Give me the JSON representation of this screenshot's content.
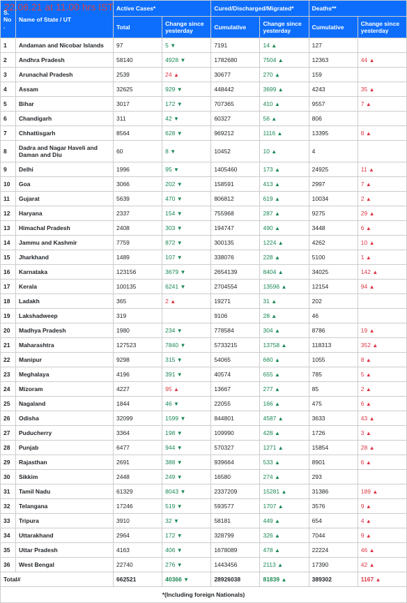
{
  "stamp": "22.06.21 at 11.00 hrs IST",
  "headers": {
    "sn": "S. No.",
    "name": "Name of State / UT",
    "active": "Active Cases*",
    "cured": "Cured/Discharged/Migrated*",
    "deaths": "Deaths**",
    "total": "Total",
    "change": "Change since yesterday",
    "cum": "Cumulative"
  },
  "footer": "*(Including foreign Nationals)",
  "total_label": "Total#",
  "totals": {
    "active_total": "662521",
    "active_ch": {
      "v": "40366",
      "d": "down"
    },
    "cured_cum": "28926038",
    "cured_ch": {
      "v": "81839",
      "d": "up-g"
    },
    "death_cum": "389302",
    "death_ch": {
      "v": "1167",
      "d": "up-r"
    }
  },
  "rows": [
    {
      "n": "1",
      "name": "Andaman and Nicobar Islands",
      "at": "97",
      "ac": {
        "v": "5",
        "d": "down"
      },
      "cc": "7191",
      "cch": {
        "v": "14",
        "d": "up-g"
      },
      "dc": "127",
      "dch": null
    },
    {
      "n": "2",
      "name": "Andhra Pradesh",
      "at": "58140",
      "ac": {
        "v": "4928",
        "d": "down"
      },
      "cc": "1782680",
      "cch": {
        "v": "7504",
        "d": "up-g"
      },
      "dc": "12363",
      "dch": {
        "v": "44",
        "d": "up-r"
      }
    },
    {
      "n": "3",
      "name": "Arunachal Pradesh",
      "at": "2539",
      "ac": {
        "v": "24",
        "d": "up-r"
      },
      "cc": "30677",
      "cch": {
        "v": "270",
        "d": "up-g"
      },
      "dc": "159",
      "dch": null
    },
    {
      "n": "4",
      "name": "Assam",
      "at": "32625",
      "ac": {
        "v": "929",
        "d": "down"
      },
      "cc": "448442",
      "cch": {
        "v": "3699",
        "d": "up-g"
      },
      "dc": "4243",
      "dch": {
        "v": "35",
        "d": "up-r"
      }
    },
    {
      "n": "5",
      "name": "Bihar",
      "at": "3017",
      "ac": {
        "v": "172",
        "d": "down"
      },
      "cc": "707365",
      "cch": {
        "v": "410",
        "d": "up-g"
      },
      "dc": "9557",
      "dch": {
        "v": "7",
        "d": "up-r"
      }
    },
    {
      "n": "6",
      "name": "Chandigarh",
      "at": "311",
      "ac": {
        "v": "42",
        "d": "down"
      },
      "cc": "60327",
      "cch": {
        "v": "56",
        "d": "up-g"
      },
      "dc": "806",
      "dch": null
    },
    {
      "n": "7",
      "name": "Chhattisgarh",
      "at": "8564",
      "ac": {
        "v": "628",
        "d": "down"
      },
      "cc": "969212",
      "cch": {
        "v": "1116",
        "d": "up-g"
      },
      "dc": "13395",
      "dch": {
        "v": "8",
        "d": "up-r"
      }
    },
    {
      "n": "8",
      "name": "Dadra and Nagar Haveli and Daman and Diu",
      "at": "60",
      "ac": {
        "v": "8",
        "d": "down"
      },
      "cc": "10452",
      "cch": {
        "v": "10",
        "d": "up-g"
      },
      "dc": "4",
      "dch": null
    },
    {
      "n": "9",
      "name": "Delhi",
      "at": "1996",
      "ac": {
        "v": "95",
        "d": "down"
      },
      "cc": "1405460",
      "cch": {
        "v": "173",
        "d": "up-g"
      },
      "dc": "24925",
      "dch": {
        "v": "11",
        "d": "up-r"
      }
    },
    {
      "n": "10",
      "name": "Goa",
      "at": "3066",
      "ac": {
        "v": "202",
        "d": "down"
      },
      "cc": "158591",
      "cch": {
        "v": "413",
        "d": "up-g"
      },
      "dc": "2997",
      "dch": {
        "v": "7",
        "d": "up-r"
      }
    },
    {
      "n": "11",
      "name": "Gujarat",
      "at": "5639",
      "ac": {
        "v": "470",
        "d": "down"
      },
      "cc": "806812",
      "cch": {
        "v": "619",
        "d": "up-g"
      },
      "dc": "10034",
      "dch": {
        "v": "2",
        "d": "up-r"
      }
    },
    {
      "n": "12",
      "name": "Haryana",
      "at": "2337",
      "ac": {
        "v": "154",
        "d": "down"
      },
      "cc": "755968",
      "cch": {
        "v": "287",
        "d": "up-g"
      },
      "dc": "9275",
      "dch": {
        "v": "29",
        "d": "up-r"
      }
    },
    {
      "n": "13",
      "name": "Himachal Pradesh",
      "at": "2408",
      "ac": {
        "v": "303",
        "d": "down"
      },
      "cc": "194747",
      "cch": {
        "v": "490",
        "d": "up-g"
      },
      "dc": "3448",
      "dch": {
        "v": "6",
        "d": "up-r"
      }
    },
    {
      "n": "14",
      "name": "Jammu and Kashmir",
      "at": "7759",
      "ac": {
        "v": "872",
        "d": "down"
      },
      "cc": "300135",
      "cch": {
        "v": "1224",
        "d": "up-g"
      },
      "dc": "4262",
      "dch": {
        "v": "10",
        "d": "up-r"
      }
    },
    {
      "n": "15",
      "name": "Jharkhand",
      "at": "1489",
      "ac": {
        "v": "107",
        "d": "down"
      },
      "cc": "338076",
      "cch": {
        "v": "228",
        "d": "up-g"
      },
      "dc": "5100",
      "dch": {
        "v": "1",
        "d": "up-r"
      }
    },
    {
      "n": "16",
      "name": "Karnataka",
      "at": "123156",
      "ac": {
        "v": "3679",
        "d": "down"
      },
      "cc": "2654139",
      "cch": {
        "v": "8404",
        "d": "up-g"
      },
      "dc": "34025",
      "dch": {
        "v": "142",
        "d": "up-r"
      }
    },
    {
      "n": "17",
      "name": "Kerala",
      "at": "100135",
      "ac": {
        "v": "6241",
        "d": "down"
      },
      "cc": "2704554",
      "cch": {
        "v": "13596",
        "d": "up-g"
      },
      "dc": "12154",
      "dch": {
        "v": "94",
        "d": "up-r"
      }
    },
    {
      "n": "18",
      "name": "Ladakh",
      "at": "365",
      "ac": {
        "v": "2",
        "d": "up-r"
      },
      "cc": "19271",
      "cch": {
        "v": "31",
        "d": "up-g"
      },
      "dc": "202",
      "dch": null
    },
    {
      "n": "19",
      "name": "Lakshadweep",
      "at": "319",
      "ac": null,
      "cc": "9106",
      "cch": {
        "v": "28",
        "d": "up-g"
      },
      "dc": "46",
      "dch": null
    },
    {
      "n": "20",
      "name": "Madhya Pradesh",
      "at": "1980",
      "ac": {
        "v": "234",
        "d": "down"
      },
      "cc": "778584",
      "cch": {
        "v": "304",
        "d": "up-g"
      },
      "dc": "8786",
      "dch": {
        "v": "19",
        "d": "up-r"
      }
    },
    {
      "n": "21",
      "name": "Maharashtra",
      "at": "127523",
      "ac": {
        "v": "7840",
        "d": "down"
      },
      "cc": "5733215",
      "cch": {
        "v": "13758",
        "d": "up-g"
      },
      "dc": "118313",
      "dch": {
        "v": "352",
        "d": "up-r"
      }
    },
    {
      "n": "22",
      "name": "Manipur",
      "at": "9298",
      "ac": {
        "v": "315",
        "d": "down"
      },
      "cc": "54065",
      "cch": {
        "v": "660",
        "d": "up-g"
      },
      "dc": "1055",
      "dch": {
        "v": "8",
        "d": "up-r"
      }
    },
    {
      "n": "23",
      "name": "Meghalaya",
      "at": "4196",
      "ac": {
        "v": "391",
        "d": "down"
      },
      "cc": "40574",
      "cch": {
        "v": "655",
        "d": "up-g"
      },
      "dc": "785",
      "dch": {
        "v": "5",
        "d": "up-r"
      }
    },
    {
      "n": "24",
      "name": "Mizoram",
      "at": "4227",
      "ac": {
        "v": "95",
        "d": "up-r"
      },
      "cc": "13667",
      "cch": {
        "v": "277",
        "d": "up-g"
      },
      "dc": "85",
      "dch": {
        "v": "2",
        "d": "up-r"
      }
    },
    {
      "n": "25",
      "name": "Nagaland",
      "at": "1844",
      "ac": {
        "v": "46",
        "d": "down"
      },
      "cc": "22055",
      "cch": {
        "v": "166",
        "d": "up-g"
      },
      "dc": "475",
      "dch": {
        "v": "6",
        "d": "up-r"
      }
    },
    {
      "n": "26",
      "name": "Odisha",
      "at": "32099",
      "ac": {
        "v": "1599",
        "d": "down"
      },
      "cc": "844801",
      "cch": {
        "v": "4587",
        "d": "up-g"
      },
      "dc": "3633",
      "dch": {
        "v": "43",
        "d": "up-r"
      }
    },
    {
      "n": "27",
      "name": "Puducherry",
      "at": "3364",
      "ac": {
        "v": "198",
        "d": "down"
      },
      "cc": "109990",
      "cch": {
        "v": "428",
        "d": "up-g"
      },
      "dc": "1726",
      "dch": {
        "v": "3",
        "d": "up-r"
      }
    },
    {
      "n": "28",
      "name": "Punjab",
      "at": "6477",
      "ac": {
        "v": "944",
        "d": "down"
      },
      "cc": "570327",
      "cch": {
        "v": "1271",
        "d": "up-g"
      },
      "dc": "15854",
      "dch": {
        "v": "28",
        "d": "up-r"
      }
    },
    {
      "n": "29",
      "name": "Rajasthan",
      "at": "2691",
      "ac": {
        "v": "388",
        "d": "down"
      },
      "cc": "939664",
      "cch": {
        "v": "533",
        "d": "up-g"
      },
      "dc": "8901",
      "dch": {
        "v": "6",
        "d": "up-r"
      }
    },
    {
      "n": "30",
      "name": "Sikkim",
      "at": "2448",
      "ac": {
        "v": "249",
        "d": "down"
      },
      "cc": "16580",
      "cch": {
        "v": "274",
        "d": "up-g"
      },
      "dc": "293",
      "dch": null
    },
    {
      "n": "31",
      "name": "Tamil Nadu",
      "at": "61329",
      "ac": {
        "v": "8043",
        "d": "down"
      },
      "cc": "2337209",
      "cch": {
        "v": "15281",
        "d": "up-g"
      },
      "dc": "31386",
      "dch": {
        "v": "189",
        "d": "up-r"
      }
    },
    {
      "n": "32",
      "name": "Telangana",
      "at": "17246",
      "ac": {
        "v": "519",
        "d": "down"
      },
      "cc": "593577",
      "cch": {
        "v": "1707",
        "d": "up-g"
      },
      "dc": "3576",
      "dch": {
        "v": "9",
        "d": "up-r"
      }
    },
    {
      "n": "33",
      "name": "Tripura",
      "at": "3910",
      "ac": {
        "v": "32",
        "d": "down"
      },
      "cc": "58181",
      "cch": {
        "v": "449",
        "d": "up-g"
      },
      "dc": "654",
      "dch": {
        "v": "4",
        "d": "up-r"
      }
    },
    {
      "n": "34",
      "name": "Uttarakhand",
      "at": "2964",
      "ac": {
        "v": "172",
        "d": "down"
      },
      "cc": "328799",
      "cch": {
        "v": "326",
        "d": "up-g"
      },
      "dc": "7044",
      "dch": {
        "v": "9",
        "d": "up-r"
      }
    },
    {
      "n": "35",
      "name": "Uttar Pradesh",
      "at": "4163",
      "ac": {
        "v": "406",
        "d": "down"
      },
      "cc": "1678089",
      "cch": {
        "v": "478",
        "d": "up-g"
      },
      "dc": "22224",
      "dch": {
        "v": "46",
        "d": "up-r"
      }
    },
    {
      "n": "36",
      "name": "West Bengal",
      "at": "22740",
      "ac": {
        "v": "276",
        "d": "down"
      },
      "cc": "1443456",
      "cch": {
        "v": "2113",
        "d": "up-g"
      },
      "dc": "17390",
      "dch": {
        "v": "42",
        "d": "up-r"
      }
    }
  ]
}
